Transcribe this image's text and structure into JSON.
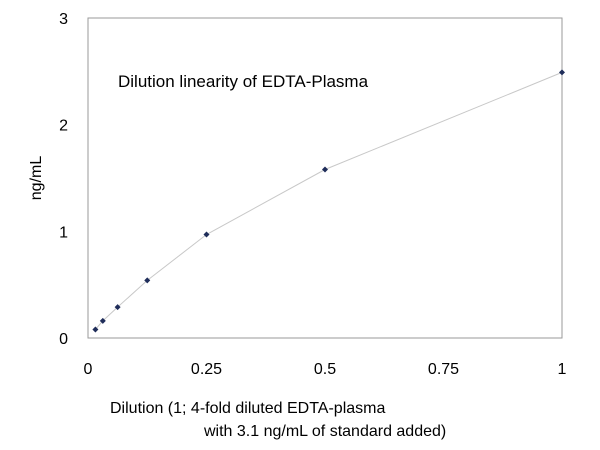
{
  "chart_data": {
    "type": "scatter",
    "title": "Dilution linearity of EDTA-Plasma",
    "xlabel_lines": [
      "Dilution (1; 4-fold diluted EDTA-plasma",
      "with 3.1 ng/mL of standard added)"
    ],
    "ylabel": "ng/mL",
    "xlim": [
      0,
      1
    ],
    "ylim": [
      0,
      3
    ],
    "xticks": [
      "0",
      "0.25",
      "0.5",
      "0.75",
      "1"
    ],
    "yticks": [
      "0",
      "1",
      "2",
      "3"
    ],
    "grid": false,
    "legend": "none",
    "series": [
      {
        "x": [
          0.015625,
          0.03125,
          0.0625,
          0.125,
          0.25,
          0.5,
          1.0
        ],
        "y": [
          0.08,
          0.16,
          0.29,
          0.54,
          0.97,
          1.58,
          2.49
        ],
        "marker_color": "#1f2d5a",
        "line_color": "#c8c8c8"
      }
    ]
  }
}
